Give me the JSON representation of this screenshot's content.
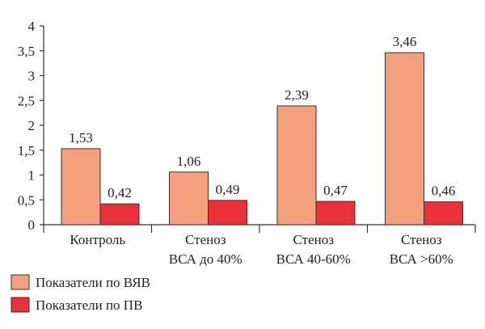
{
  "chart_data": {
    "type": "bar",
    "categories": [
      [
        "Контроль"
      ],
      [
        "Стеноз",
        "ВСА до 40%"
      ],
      [
        "Стеноз",
        "ВСА 40-60%"
      ],
      [
        "Стеноз",
        "ВСА >60%"
      ]
    ],
    "series": [
      {
        "name": "Показатели по ВЯВ",
        "color": "#f4a07e",
        "values": [
          1.53,
          1.06,
          2.39,
          3.46
        ],
        "labels": [
          "1,53",
          "1,06",
          "2,39",
          "3,46"
        ]
      },
      {
        "name": "Показатели по ПВ",
        "color": "#e8313b",
        "values": [
          0.42,
          0.49,
          0.47,
          0.46
        ],
        "labels": [
          "0,42",
          "0,49",
          "0,47",
          "0,46"
        ]
      }
    ],
    "ylim": [
      0,
      4
    ],
    "yticks": [
      0,
      0.5,
      1,
      1.5,
      2,
      2.5,
      3,
      3.5,
      4
    ],
    "ytick_labels": [
      "0",
      "0,5",
      "1",
      "1,5",
      "2",
      "2,5",
      "3",
      "3,5",
      "4"
    ],
    "grid": false,
    "legend_position": "bottom-left"
  }
}
